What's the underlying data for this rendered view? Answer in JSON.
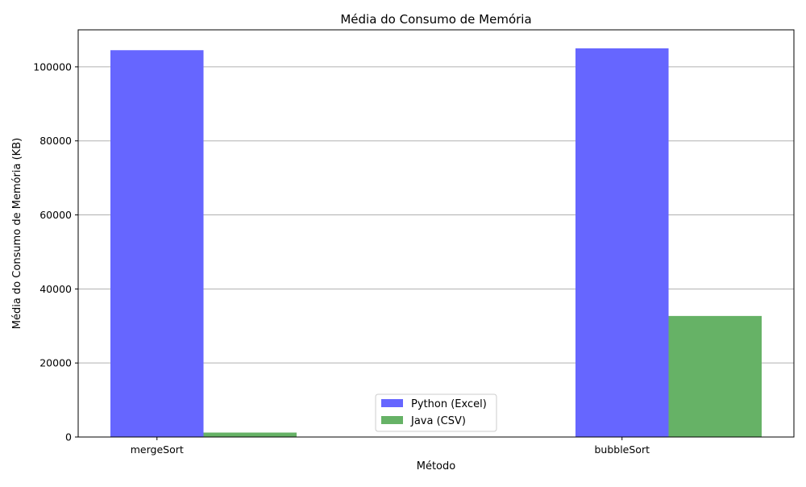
{
  "chart_data": {
    "type": "bar",
    "title": "Média do Consumo de Memória",
    "xlabel": "Método",
    "ylabel": "Média do Consumo de Memória (KB)",
    "categories": [
      "mergeSort",
      "bubbleSort"
    ],
    "series": [
      {
        "name": "Python (Excel)",
        "values": [
          104500,
          105000
        ],
        "color": "#6666ff"
      },
      {
        "name": "Java (CSV)",
        "values": [
          1200,
          32700
        ],
        "color": "#66b266"
      }
    ],
    "ylim": [
      0,
      110000
    ],
    "yticks": [
      0,
      20000,
      40000,
      60000,
      80000,
      100000
    ],
    "grid": "y-major",
    "legend_position": "bottom-center"
  }
}
